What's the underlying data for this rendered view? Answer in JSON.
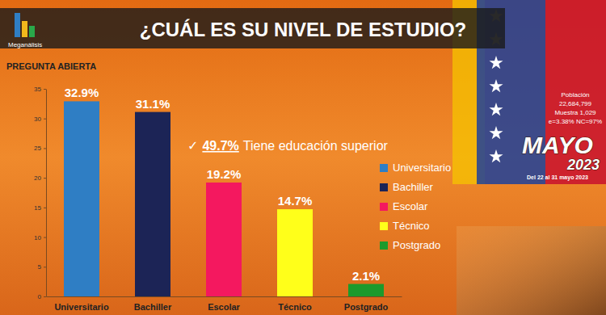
{
  "chart_data": {
    "type": "bar",
    "title": "¿CUÁL ES SU NIVEL DE ESTUDIO?",
    "subtitle": "PREGUNTA ABIERTA",
    "source": "Meganálisis",
    "categories": [
      "Universitario",
      "Bachiller",
      "Escolar",
      "Técnico",
      "Postgrado"
    ],
    "values": [
      32.9,
      31.1,
      19.2,
      14.7,
      2.1
    ],
    "value_labels": [
      "32.9%",
      "31.1%",
      "19.2%",
      "14.7%",
      "2.1%"
    ],
    "colors": [
      "#2f7ec4",
      "#1c2456",
      "#f4185f",
      "#ffff1a",
      "#1c9a2c"
    ],
    "ylim": [
      0,
      35
    ],
    "yticks": [
      0,
      5,
      10,
      15,
      20,
      25,
      30,
      35
    ],
    "grid": false,
    "data_labels": true,
    "legend": "right",
    "annotation": [
      "✓",
      "49.7%",
      "Tiene educación superior"
    ],
    "notes": [
      "Población",
      "22,684,799",
      "Muestra 1,029",
      "e=3.38%  NC=97%",
      "MAYO",
      "2023",
      "Del 22 al 31 mayo 2023"
    ]
  }
}
